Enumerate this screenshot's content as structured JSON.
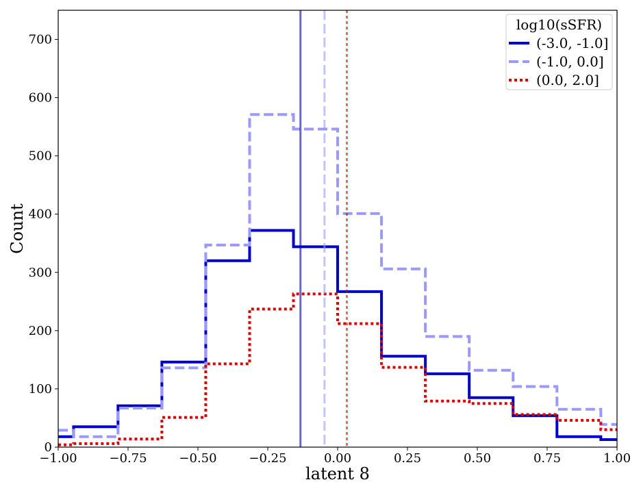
{
  "chart_data": {
    "type": "histogram",
    "xlabel": "latent 8",
    "ylabel": "Count",
    "xlim": [
      -1.0,
      1.0
    ],
    "ylim": [
      0,
      750
    ],
    "xticks": [
      "−1.00",
      "−0.75",
      "−0.50",
      "−0.25",
      "0.00",
      "0.25",
      "0.50",
      "0.75",
      "1.00"
    ],
    "yticks": [
      "0",
      "100",
      "200",
      "300",
      "400",
      "500",
      "600",
      "700"
    ],
    "legend": {
      "title": "log10(sSFR)",
      "position": "top-right"
    },
    "series": [
      {
        "name": "(-3.0, -1.0]",
        "color": "#0000cc",
        "style": "solid",
        "bin_edges": [
          -1.0,
          -0.945,
          -0.786,
          -0.629,
          -0.472,
          -0.315,
          -0.158,
          0.0,
          0.157,
          0.314,
          0.471,
          0.628,
          0.785,
          0.942,
          1.0
        ],
        "counts": [
          18,
          35,
          71,
          146,
          320,
          372,
          344,
          267,
          156,
          126,
          85,
          54,
          18,
          13
        ],
        "median": -0.133
      },
      {
        "name": "(-1.0, 0.0]",
        "color": "#9999ff",
        "style": "dashed",
        "bin_edges": [
          -1.0,
          -0.945,
          -0.786,
          -0.629,
          -0.472,
          -0.315,
          -0.158,
          0.0,
          0.157,
          0.314,
          0.471,
          0.628,
          0.785,
          0.942,
          1.0
        ],
        "counts": [
          29,
          18,
          67,
          136,
          347,
          571,
          546,
          401,
          306,
          190,
          132,
          104,
          65,
          39
        ],
        "median": -0.047
      },
      {
        "name": "(0.0, 2.0]",
        "color": "#dd0000",
        "style": "dotted",
        "bin_edges": [
          -1.0,
          -0.945,
          -0.786,
          -0.629,
          -0.472,
          -0.315,
          -0.158,
          0.0,
          0.157,
          0.314,
          0.471,
          0.628,
          0.785,
          0.942,
          1.0
        ],
        "counts": [
          4,
          6,
          14,
          51,
          143,
          237,
          263,
          212,
          137,
          79,
          75,
          56,
          46,
          30
        ],
        "median": 0.033
      }
    ]
  }
}
